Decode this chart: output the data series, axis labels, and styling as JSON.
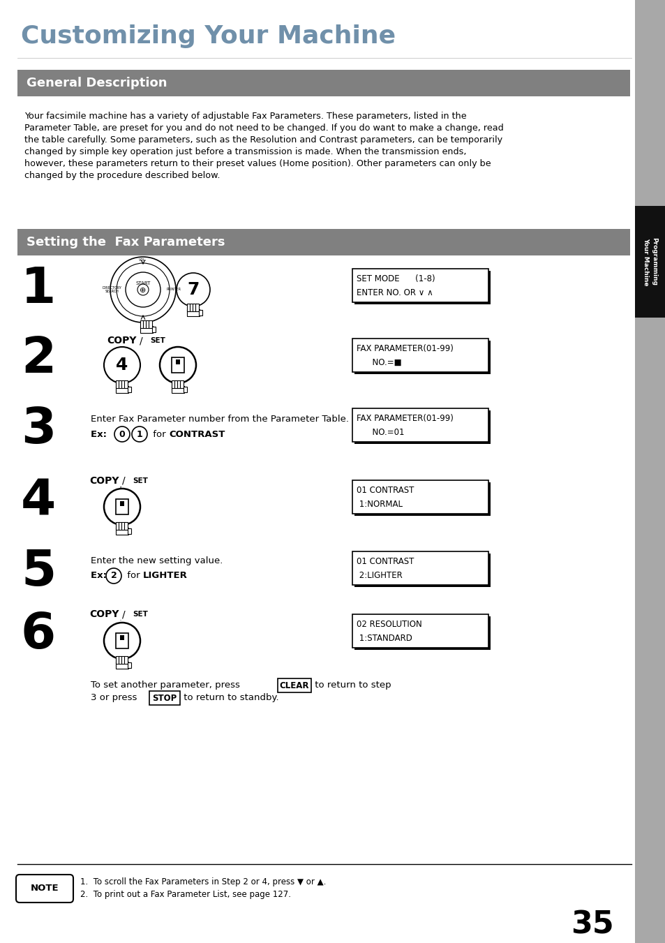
{
  "title": "Customizing Your Machine",
  "title_color": "#7090aa",
  "section1_title": "General Description",
  "section_bg": "#808080",
  "section1_text_lines": [
    "Your facsimile machine has a variety of adjustable Fax Parameters. These parameters, listed in the",
    "Parameter Table, are preset for you and do not need to be changed. If you do want to make a change, read",
    "the table carefully. Some parameters, such as the Resolution and Contrast parameters, can be temporarily",
    "changed by simple key operation just before a transmission is made. When the transmission ends,",
    "however, these parameters return to their preset values (Home position). Other parameters can only be",
    "changed by the procedure described below."
  ],
  "section2_title": "Setting the  Fax Parameters",
  "sidebar_text": "Programming\nYour Machine",
  "step1_disp_line1": "SET MODE      (1-8)",
  "step1_disp_line2": "ENTER NO. OR ∨ ∧",
  "step2_disp_line1": "FAX PARAMETER(01-99)",
  "step2_disp_line2": "      NO.=■",
  "step3_text": "Enter Fax Parameter number from the Parameter Table.",
  "step3_ex_plain": "Ex: ",
  "step3_ex_bold": "for CONTRAST",
  "step3_disp_line1": "FAX PARAMETER(01-99)",
  "step3_disp_line2": "      NO.=01",
  "step4_disp_line1": "01 CONTRAST",
  "step4_disp_line2": " 1:NORMAL",
  "step5_text": "Enter the new setting value.",
  "step5_ex_bold": "for LIGHTER",
  "step5_disp_line1": "01 CONTRAST",
  "step5_disp_line2": " 2:LIGHTER",
  "step6_disp_line1": "02 RESOLUTION",
  "step6_disp_line2": " 1:STANDARD",
  "bottom1a": "To set another parameter, press ",
  "bottom1b": " to return to step",
  "bottom1_btn": "CLEAR",
  "bottom2a": "3 or press ",
  "bottom2b": " to return to standby.",
  "bottom2_btn": "STOP",
  "note1": "1.  To scroll the Fax Parameters in Step 2 or 4, press ▼ or ▲.",
  "note2": "2.  To print out a Fax Parameter List, see page 127.",
  "page_number": "35",
  "bg_color": "#ffffff"
}
